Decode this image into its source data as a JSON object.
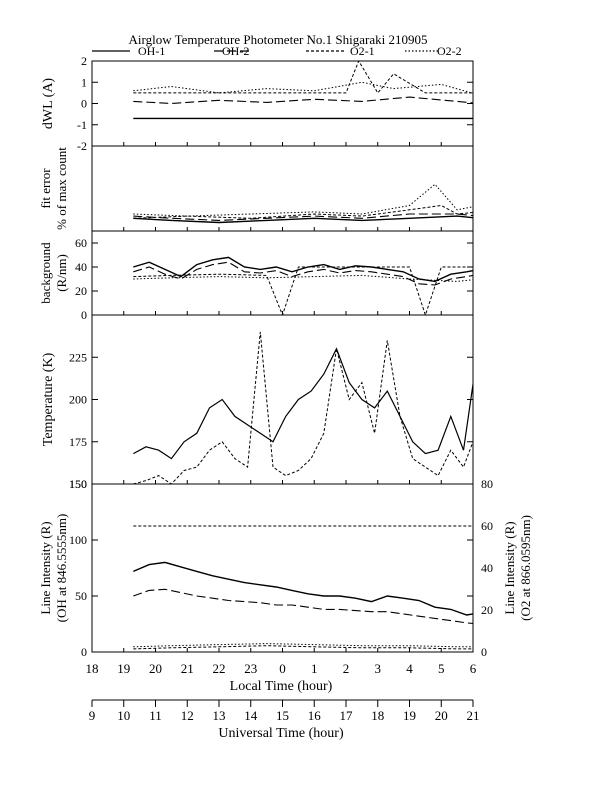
{
  "figure": {
    "title": "Airglow Temperature Photometer No.1 Shigaraki 210905",
    "legend": [
      {
        "name": "OH-1",
        "dash": "solid"
      },
      {
        "name": "OH-2",
        "dash": "long-dash"
      },
      {
        "name": "O2-1",
        "dash": "short-dash"
      },
      {
        "name": "O2-2",
        "dash": "dot"
      }
    ],
    "xlabel_local": "Local Time (hour)",
    "xlabel_ut": "Universal Time (hour)",
    "local_ticks": [
      "18",
      "19",
      "20",
      "21",
      "22",
      "23",
      "0",
      "1",
      "2",
      "3",
      "4",
      "5",
      "6"
    ],
    "ut_ticks": [
      "9",
      "10",
      "11",
      "12",
      "13",
      "14",
      "15",
      "16",
      "17",
      "18",
      "19",
      "20",
      "21"
    ]
  },
  "chart_data": [
    {
      "type": "line",
      "ylabel": "dWL (A)",
      "ylim": [
        -2,
        2
      ],
      "yticks": [
        "2",
        "1",
        "0",
        "-1",
        "-2"
      ],
      "x_axis": "Local Time (hour), 18 to 30 (0-6 after midnight)",
      "series": [
        {
          "name": "OH-1",
          "x": [
            19.3,
            30.2
          ],
          "values": [
            -0.7,
            -0.7
          ]
        },
        {
          "name": "OH-2",
          "x": [
            19.3,
            20.5,
            22,
            23.5,
            25,
            26.5,
            28,
            29.5,
            30.2
          ],
          "values": [
            0.1,
            0.0,
            0.15,
            0.05,
            0.2,
            0.1,
            0.3,
            0.1,
            0.0
          ]
        },
        {
          "name": "O2-1",
          "x": [
            19.3,
            22,
            24,
            26,
            26.4,
            27,
            27.5,
            28.5,
            30.2
          ],
          "values": [
            0.5,
            0.5,
            0.5,
            0.5,
            2.0,
            0.5,
            1.4,
            0.5,
            0.5
          ]
        },
        {
          "name": "O2-2",
          "x": [
            19.3,
            20.5,
            22,
            23.5,
            25,
            26.5,
            27.5,
            29,
            30.2
          ],
          "values": [
            0.6,
            0.8,
            0.5,
            0.7,
            0.6,
            1.0,
            0.7,
            0.9,
            0.4
          ]
        }
      ]
    },
    {
      "type": "line",
      "ylabel": "fit error",
      "ylabel2": "% of max count",
      "ylim": [
        0,
        2
      ],
      "x_axis": "Local Time (hour)",
      "series": [
        {
          "name": "OH-1",
          "x": [
            19.3,
            20.5,
            22,
            23.5,
            25,
            26.5,
            28,
            29.5,
            30.2
          ],
          "values": [
            0.3,
            0.25,
            0.2,
            0.25,
            0.3,
            0.25,
            0.3,
            0.35,
            0.3
          ]
        },
        {
          "name": "OH-2",
          "x": [
            19.3,
            20.5,
            22,
            23.5,
            25,
            26.5,
            28,
            29.5,
            30.2
          ],
          "values": [
            0.35,
            0.3,
            0.25,
            0.3,
            0.35,
            0.3,
            0.4,
            0.4,
            0.35
          ]
        },
        {
          "name": "O2-1",
          "x": [
            19.3,
            21,
            23,
            25,
            26.5,
            28,
            29,
            29.5,
            30.2
          ],
          "values": [
            0.3,
            0.35,
            0.3,
            0.4,
            0.35,
            0.5,
            0.6,
            0.4,
            0.45
          ]
        },
        {
          "name": "O2-2",
          "x": [
            19.3,
            21,
            23,
            25,
            26.5,
            28,
            28.8,
            29.5,
            30.2
          ],
          "values": [
            0.4,
            0.35,
            0.4,
            0.45,
            0.4,
            0.6,
            1.1,
            0.5,
            0.6
          ]
        }
      ]
    },
    {
      "type": "line",
      "ylabel": "background",
      "ylabel2": "(R/nm)",
      "ylim": [
        0,
        70
      ],
      "yticks": [
        "60",
        "40",
        "20",
        "0"
      ],
      "x_axis": "Local Time (hour)",
      "series": [
        {
          "name": "OH-1",
          "x": [
            19.3,
            19.8,
            20.3,
            20.8,
            21.3,
            21.8,
            22.3,
            22.8,
            23.3,
            23.8,
            24.3,
            24.8,
            25.3,
            25.8,
            26.3,
            26.8,
            27.3,
            27.8,
            28.3,
            28.8,
            29.3,
            29.8,
            30.2
          ],
          "values": [
            40,
            44,
            38,
            32,
            42,
            46,
            48,
            40,
            38,
            40,
            36,
            40,
            42,
            38,
            41,
            40,
            38,
            36,
            30,
            28,
            34,
            36,
            38
          ]
        },
        {
          "name": "OH-2",
          "x": [
            19.3,
            19.8,
            20.3,
            20.8,
            21.3,
            21.8,
            22.3,
            22.8,
            23.3,
            23.8,
            24.3,
            24.8,
            25.3,
            25.8,
            26.3,
            26.8,
            27.3,
            27.8,
            28.3,
            28.8,
            29.3,
            29.8,
            30.2
          ],
          "values": [
            36,
            40,
            34,
            30,
            38,
            42,
            44,
            36,
            35,
            37,
            32,
            36,
            38,
            35,
            37,
            36,
            34,
            32,
            26,
            25,
            30,
            32,
            34
          ]
        },
        {
          "name": "O2-1",
          "x": [
            19.3,
            20.5,
            22,
            23.5,
            24,
            24.5,
            25,
            26,
            27,
            27.5,
            28,
            28.5,
            29,
            29.5,
            30.2
          ],
          "values": [
            32,
            33,
            34,
            33,
            0,
            40,
            40,
            40,
            40,
            40,
            40,
            0,
            40,
            40,
            40
          ]
        },
        {
          "name": "O2-2",
          "x": [
            19.3,
            20.5,
            22,
            23.5,
            25,
            26.5,
            28,
            29.5,
            30.2
          ],
          "values": [
            30,
            31,
            32,
            31,
            32,
            33,
            30,
            28,
            30
          ]
        }
      ]
    },
    {
      "type": "line",
      "ylabel": "Temperature (K)",
      "ylim": [
        150,
        250
      ],
      "yticks": [
        "225",
        "200",
        "175",
        "150"
      ],
      "x_axis": "Local Time (hour)",
      "series": [
        {
          "name": "OH",
          "x": [
            19.3,
            19.7,
            20.1,
            20.5,
            20.9,
            21.3,
            21.7,
            22.1,
            22.5,
            22.9,
            23.3,
            23.7,
            24.1,
            24.5,
            24.9,
            25.3,
            25.7,
            26.1,
            26.5,
            26.9,
            27.3,
            27.7,
            28.1,
            28.5,
            28.9,
            29.3,
            29.7,
            30.2
          ],
          "values": [
            168,
            172,
            170,
            165,
            175,
            180,
            195,
            200,
            190,
            185,
            180,
            175,
            190,
            200,
            205,
            215,
            230,
            210,
            200,
            195,
            205,
            190,
            175,
            168,
            170,
            190,
            170,
            235
          ]
        },
        {
          "name": "O2",
          "x": [
            19.3,
            19.7,
            20.1,
            20.5,
            20.9,
            21.3,
            21.7,
            22.1,
            22.5,
            22.9,
            23.3,
            23.7,
            24.1,
            24.5,
            24.9,
            25.3,
            25.7,
            26.1,
            26.5,
            26.9,
            27.3,
            27.7,
            28.1,
            28.5,
            28.9,
            29.3,
            29.7,
            30.2
          ],
          "values": [
            150,
            152,
            155,
            150,
            158,
            160,
            170,
            175,
            165,
            160,
            240,
            160,
            155,
            158,
            165,
            180,
            230,
            200,
            210,
            180,
            235,
            190,
            165,
            160,
            155,
            170,
            160,
            185
          ]
        }
      ]
    },
    {
      "type": "line",
      "ylabel": "Line Intensity (R)",
      "ylabel2": "(OH at 846.5555nm)",
      "ylim": [
        0,
        150
      ],
      "yticks": [
        "150",
        "100",
        "50",
        "0"
      ],
      "right_ylabel": "Line Intensity (R)",
      "right_ylabel2": "(O2 at 866.0595nm)",
      "right_ylim": [
        0,
        80
      ],
      "right_yticks": [
        "80",
        "60",
        "40",
        "20",
        "0"
      ],
      "x_axis": "Local Time (hour)",
      "series": [
        {
          "name": "OH-1",
          "axis": "left",
          "x": [
            19.3,
            19.8,
            20.3,
            20.8,
            21.3,
            21.8,
            22.3,
            22.8,
            23.3,
            23.8,
            24.3,
            24.8,
            25.3,
            25.8,
            26.3,
            26.8,
            27.3,
            27.8,
            28.3,
            28.8,
            29.3,
            29.8,
            30.2
          ],
          "values": [
            72,
            78,
            80,
            76,
            72,
            68,
            65,
            62,
            60,
            58,
            55,
            52,
            50,
            50,
            48,
            45,
            50,
            48,
            46,
            40,
            38,
            33,
            35
          ]
        },
        {
          "name": "OH-2",
          "axis": "left",
          "x": [
            19.3,
            19.8,
            20.3,
            20.8,
            21.3,
            21.8,
            22.3,
            22.8,
            23.3,
            23.8,
            24.3,
            24.8,
            25.3,
            25.8,
            26.3,
            26.8,
            27.3,
            27.8,
            28.3,
            28.8,
            29.3,
            29.8,
            30.2
          ],
          "values": [
            50,
            55,
            56,
            53,
            50,
            48,
            46,
            45,
            44,
            42,
            42,
            40,
            38,
            38,
            37,
            36,
            36,
            34,
            32,
            30,
            28,
            26,
            25
          ]
        },
        {
          "name": "O2-1",
          "axis": "right",
          "x": [
            19.3,
            20.5,
            22,
            23.5,
            25,
            26.5,
            28,
            29.5,
            30.2
          ],
          "values": [
            1.5,
            2,
            2.5,
            3,
            2.5,
            2,
            2,
            1.5,
            1.5
          ]
        },
        {
          "name": "O2-2",
          "axis": "right",
          "x": [
            19.3,
            20.5,
            22,
            23.5,
            25,
            26.5,
            28,
            29.5,
            30.2
          ],
          "values": [
            2.5,
            3,
            3.5,
            4,
            3.5,
            3,
            3,
            2.5,
            2.5
          ]
        },
        {
          "name": "O2 baseline",
          "axis": "right",
          "x": [
            19.3,
            30.2
          ],
          "values": [
            60,
            60
          ]
        }
      ]
    }
  ]
}
